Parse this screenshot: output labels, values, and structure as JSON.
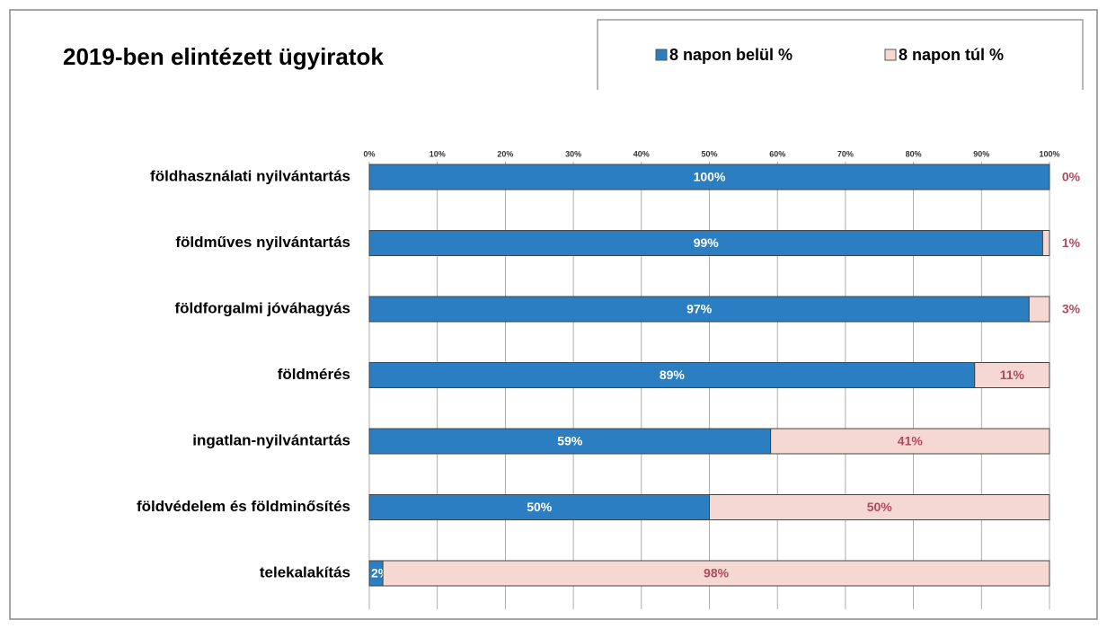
{
  "chart_data": {
    "type": "stacked-bar-horizontal",
    "title": "2019-ben elintézett ügyiratok",
    "categories": [
      "földhasználati nyilvántartás",
      "földműves nyilvántartás",
      "földforgalmi jóváhagyás",
      "földmérés",
      "ingatlan-nyilvántartás",
      "földvédelem és földminősítés",
      "telekalakítás"
    ],
    "series": [
      {
        "name": "8 napon belül %",
        "color": "#2b7ec1",
        "values": [
          100,
          99,
          97,
          89,
          59,
          50,
          2
        ],
        "value_labels": [
          "100%",
          "99%",
          "97%",
          "89%",
          "59%",
          "50%",
          "2%"
        ]
      },
      {
        "name": "8 napon túl %",
        "color": "#f6d8d2",
        "values": [
          0,
          1,
          3,
          11,
          41,
          50,
          98
        ],
        "value_labels": [
          "0%",
          "1%",
          "3%",
          "11%",
          "41%",
          "50%",
          "98%"
        ]
      }
    ],
    "xlim": [
      0,
      100
    ],
    "xticks": [
      {
        "value": 0,
        "label": "0%"
      },
      {
        "value": 10,
        "label": "10%"
      },
      {
        "value": 20,
        "label": "20%"
      },
      {
        "value": 30,
        "label": "30%"
      },
      {
        "value": 40,
        "label": "40%"
      },
      {
        "value": 50,
        "label": "50%"
      },
      {
        "value": 60,
        "label": "60%"
      },
      {
        "value": 70,
        "label": "70%"
      },
      {
        "value": 80,
        "label": "80%"
      },
      {
        "value": 90,
        "label": "90%"
      },
      {
        "value": 100,
        "label": "100%"
      }
    ],
    "grid": true,
    "legend": "top-right"
  }
}
